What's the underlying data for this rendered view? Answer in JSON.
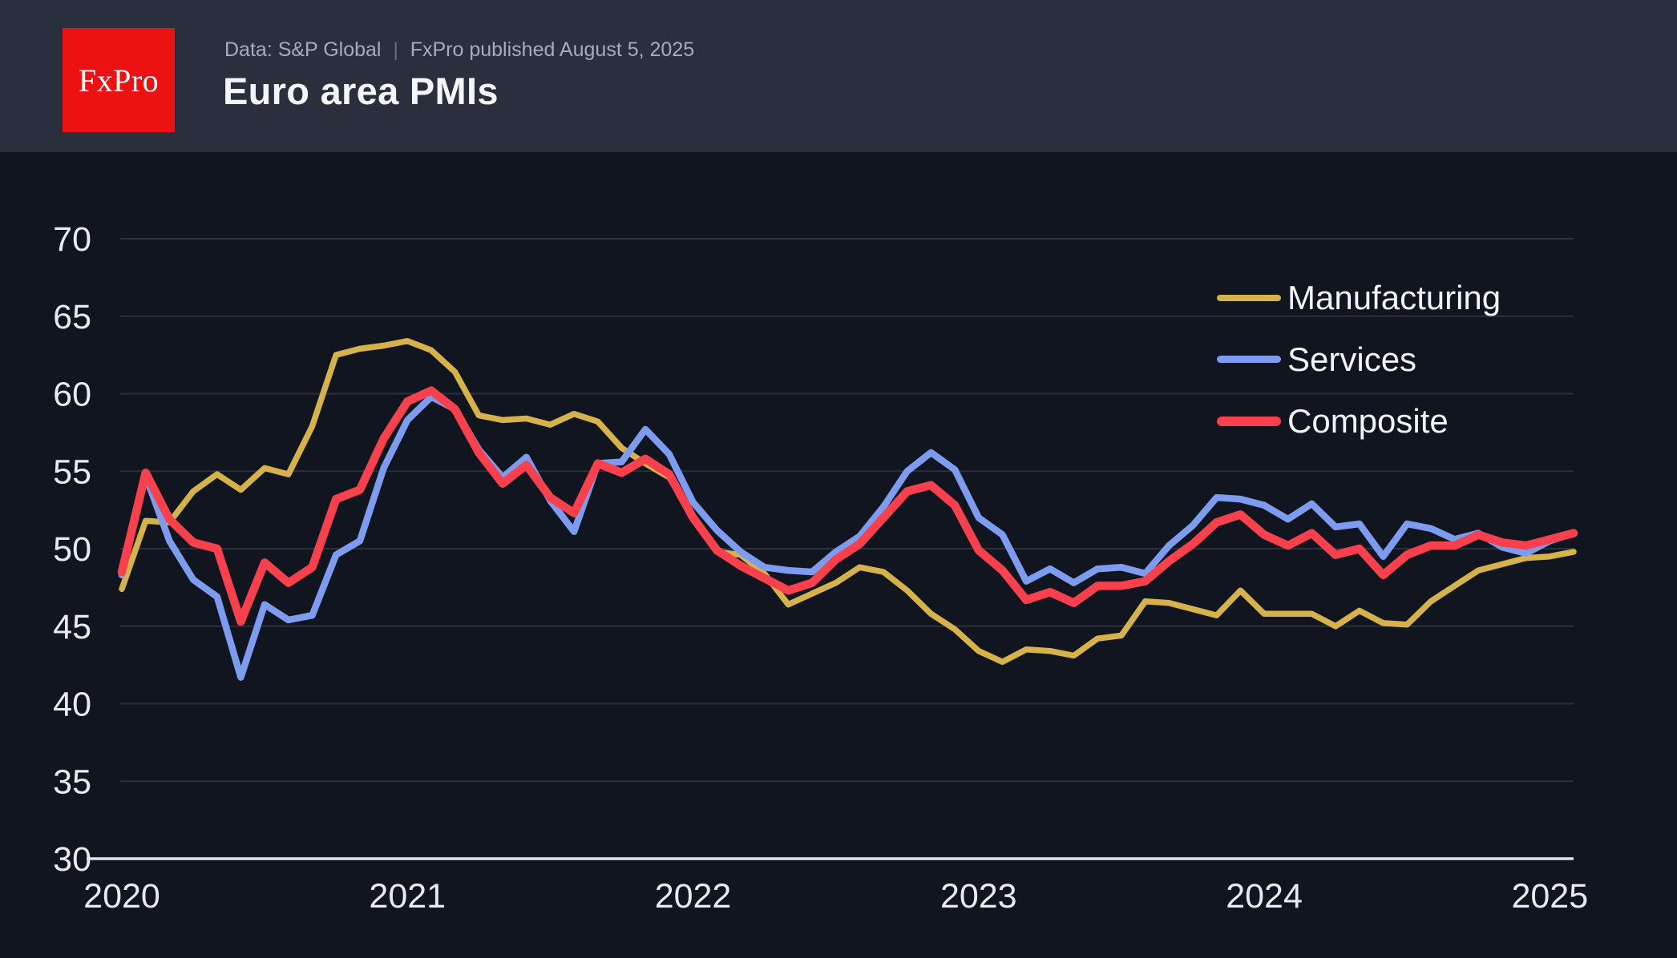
{
  "header": {
    "logo_text": "FxPro",
    "data_source": "Data: S&P Global",
    "separator": "|",
    "published": "FxPro published August 5, 2025",
    "title": "Euro area PMIs"
  },
  "colors": {
    "page_background": "#10151F",
    "header_background": "#2A2F3D",
    "logo_background": "#EC1112",
    "grid_line": "#2A303C",
    "axis_line": "#E3E5EA",
    "tick_label": "#E8EAEF",
    "manufacturing": "#D5B34A",
    "services": "#7E9CEF",
    "composite": "#F9414E"
  },
  "chart_data": {
    "type": "line",
    "title": "Euro area PMIs",
    "frequency": "monthly",
    "x_start_month": "2020-06",
    "x_end_month": "2025-07",
    "ylim": [
      30,
      70
    ],
    "y_ticks": [
      30,
      35,
      40,
      45,
      50,
      55,
      60,
      65,
      70
    ],
    "x_ticks": [
      {
        "index": 0,
        "label": "2020"
      },
      {
        "index": 12,
        "label": "2021"
      },
      {
        "index": 24,
        "label": "2022"
      },
      {
        "index": 36,
        "label": "2023"
      },
      {
        "index": 48,
        "label": "2024"
      },
      {
        "index": 60,
        "label": "2025"
      }
    ],
    "grid": "horizontal",
    "legend_position": "upper-right",
    "series": [
      {
        "name": "Manufacturing",
        "color": "#D5B34A",
        "values": [
          47.4,
          51.8,
          51.7,
          53.7,
          54.8,
          53.8,
          55.2,
          54.8,
          57.9,
          62.5,
          62.9,
          63.1,
          63.4,
          62.8,
          61.4,
          58.6,
          58.3,
          58.4,
          58.0,
          58.7,
          58.2,
          56.5,
          55.5,
          54.6,
          52.1,
          49.8,
          49.6,
          48.4,
          46.4,
          47.1,
          47.8,
          48.8,
          48.5,
          47.3,
          45.8,
          44.8,
          43.4,
          42.7,
          43.5,
          43.4,
          43.1,
          44.2,
          44.4,
          46.6,
          46.5,
          46.1,
          45.7,
          47.3,
          45.8,
          45.8,
          45.8,
          45.0,
          46.0,
          45.2,
          45.1,
          46.6,
          47.6,
          48.6,
          49.0,
          49.4,
          49.5,
          49.8
        ]
      },
      {
        "name": "Services",
        "color": "#7E9CEF",
        "values": [
          48.3,
          54.7,
          50.5,
          48.0,
          46.9,
          41.7,
          46.4,
          45.4,
          45.7,
          49.6,
          50.5,
          55.2,
          58.3,
          59.8,
          59.0,
          56.4,
          54.6,
          55.9,
          53.1,
          51.1,
          55.5,
          55.6,
          57.7,
          56.1,
          53.0,
          51.2,
          49.8,
          48.8,
          48.6,
          48.5,
          49.8,
          50.8,
          52.7,
          55.0,
          56.2,
          55.1,
          52.0,
          50.9,
          47.9,
          48.7,
          47.8,
          48.7,
          48.8,
          48.4,
          50.2,
          51.5,
          53.3,
          53.2,
          52.8,
          51.9,
          52.9,
          51.4,
          51.6,
          49.5,
          51.6,
          51.3,
          50.6,
          51.0,
          50.1,
          49.7,
          50.5,
          51.0
        ]
      },
      {
        "name": "Composite",
        "color": "#F9414E",
        "values": [
          48.5,
          54.9,
          51.9,
          50.4,
          50.0,
          45.3,
          49.1,
          47.8,
          48.8,
          53.2,
          53.8,
          57.1,
          59.5,
          60.2,
          59.0,
          56.2,
          54.2,
          55.4,
          53.3,
          52.3,
          55.5,
          54.9,
          55.8,
          54.8,
          52.0,
          49.9,
          48.9,
          48.1,
          47.3,
          47.8,
          49.3,
          50.3,
          52.0,
          53.7,
          54.1,
          52.8,
          49.9,
          48.6,
          46.7,
          47.2,
          46.5,
          47.6,
          47.6,
          47.9,
          49.2,
          50.3,
          51.7,
          52.2,
          50.9,
          50.2,
          51.0,
          49.6,
          50.0,
          48.3,
          49.6,
          50.2,
          50.2,
          50.9,
          50.4,
          50.2,
          50.6,
          51.0
        ]
      }
    ]
  }
}
